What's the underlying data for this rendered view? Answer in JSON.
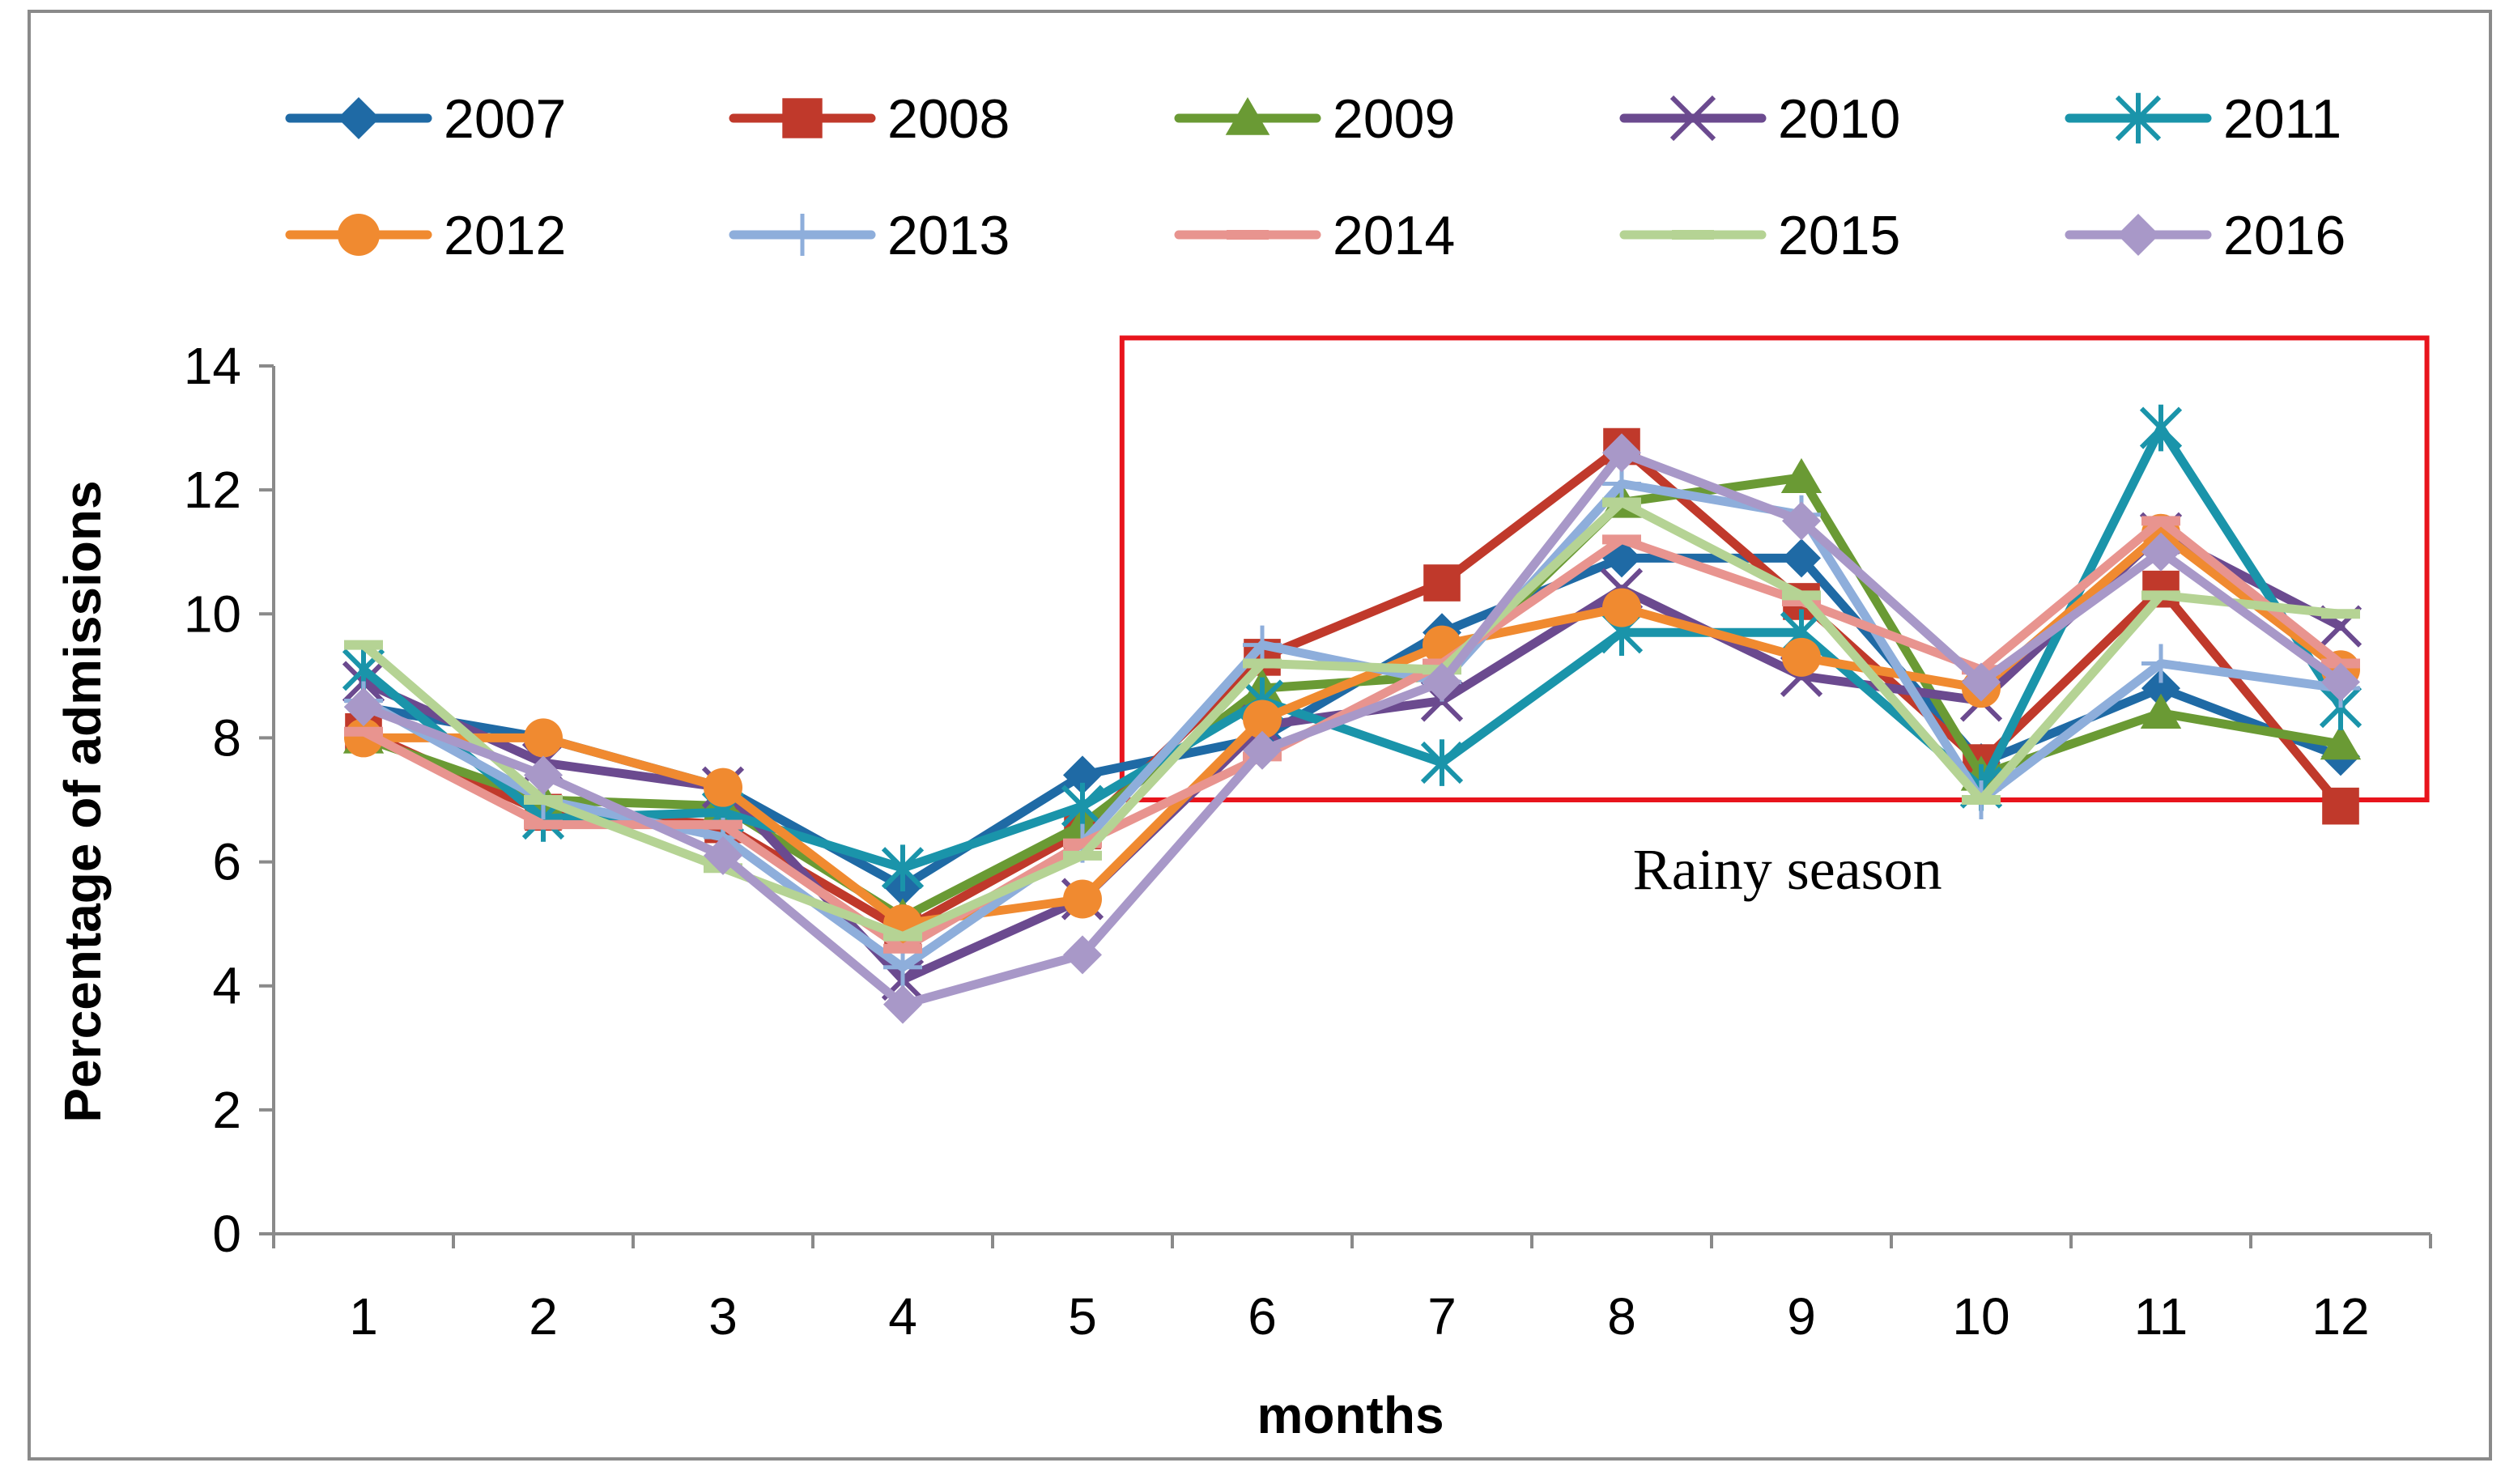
{
  "chart_data": {
    "type": "line",
    "title": "",
    "xlabel": "months",
    "ylabel": "Percentage of admissions",
    "categories": [
      "1",
      "2",
      "3",
      "4",
      "5",
      "6",
      "7",
      "8",
      "9",
      "10",
      "11",
      "12"
    ],
    "ylim": [
      0,
      14
    ],
    "yticks": [
      0,
      2,
      4,
      6,
      8,
      10,
      12,
      14
    ],
    "grid": false,
    "legend_position": "top",
    "series": [
      {
        "name": "2007",
        "color": "#1f6aa5",
        "marker": "diamond",
        "values": [
          8.5,
          8.0,
          7.2,
          5.6,
          7.4,
          8.0,
          9.7,
          10.9,
          10.9,
          7.6,
          8.8,
          7.7
        ]
      },
      {
        "name": "2008",
        "color": "#c0392b",
        "marker": "square",
        "values": [
          8.1,
          6.8,
          6.6,
          4.9,
          6.5,
          9.3,
          10.5,
          12.7,
          10.2,
          7.6,
          10.4,
          6.9
        ]
      },
      {
        "name": "2009",
        "color": "#6a9a34",
        "marker": "triangle",
        "values": [
          8.0,
          7.0,
          6.9,
          5.1,
          6.6,
          8.8,
          9.0,
          11.8,
          12.2,
          7.4,
          8.4,
          7.9
        ]
      },
      {
        "name": "2010",
        "color": "#6b4a8f",
        "marker": "x",
        "values": [
          8.9,
          7.6,
          7.2,
          4.1,
          5.4,
          8.2,
          8.6,
          10.4,
          9.0,
          8.6,
          11.3,
          9.8
        ]
      },
      {
        "name": "2011",
        "color": "#1a94aa",
        "marker": "asterisk",
        "values": [
          9.1,
          6.7,
          6.8,
          5.9,
          6.9,
          8.6,
          7.6,
          9.7,
          9.7,
          7.2,
          13.0,
          8.5
        ]
      },
      {
        "name": "2012",
        "color": "#f08a30",
        "marker": "circle",
        "values": [
          8.0,
          8.0,
          7.2,
          5.0,
          5.4,
          8.3,
          9.5,
          10.1,
          9.3,
          8.8,
          11.3,
          9.1
        ]
      },
      {
        "name": "2013",
        "color": "#8eaedb",
        "marker": "plus",
        "values": [
          8.6,
          7.0,
          6.4,
          4.3,
          6.3,
          9.5,
          8.9,
          12.1,
          11.6,
          7.0,
          9.2,
          8.8
        ]
      },
      {
        "name": "2014",
        "color": "#e8948f",
        "marker": "dash",
        "values": [
          8.1,
          6.6,
          6.6,
          4.6,
          6.3,
          7.7,
          9.2,
          11.2,
          10.2,
          9.1,
          11.5,
          9.2
        ]
      },
      {
        "name": "2015",
        "color": "#b5d394",
        "marker": "dash",
        "values": [
          9.5,
          7.0,
          5.9,
          4.8,
          6.1,
          9.2,
          9.1,
          11.8,
          10.3,
          7.0,
          10.3,
          10.0
        ]
      },
      {
        "name": "2016",
        "color": "#a898c8",
        "marker": "diamond",
        "values": [
          8.5,
          7.4,
          6.1,
          3.7,
          4.5,
          7.8,
          8.9,
          12.6,
          11.5,
          8.9,
          11.0,
          8.9
        ]
      }
    ],
    "annotations": [
      {
        "text": "Rainy season",
        "months_from": "6",
        "months_to": "12",
        "y_from": 7.0,
        "y_to": 15.0,
        "box_color": "#e8141c"
      }
    ]
  }
}
